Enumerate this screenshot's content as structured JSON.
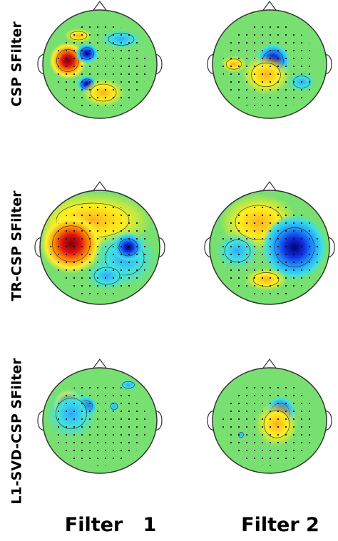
{
  "rows": [
    {
      "label": "CSP SFilter"
    },
    {
      "label": "TR-CSP SFilter"
    },
    {
      "label": "L1-SVD-CSP SFilter"
    }
  ],
  "columns": [
    {
      "label": "Filter   1"
    },
    {
      "label": "Filter 2"
    }
  ]
}
